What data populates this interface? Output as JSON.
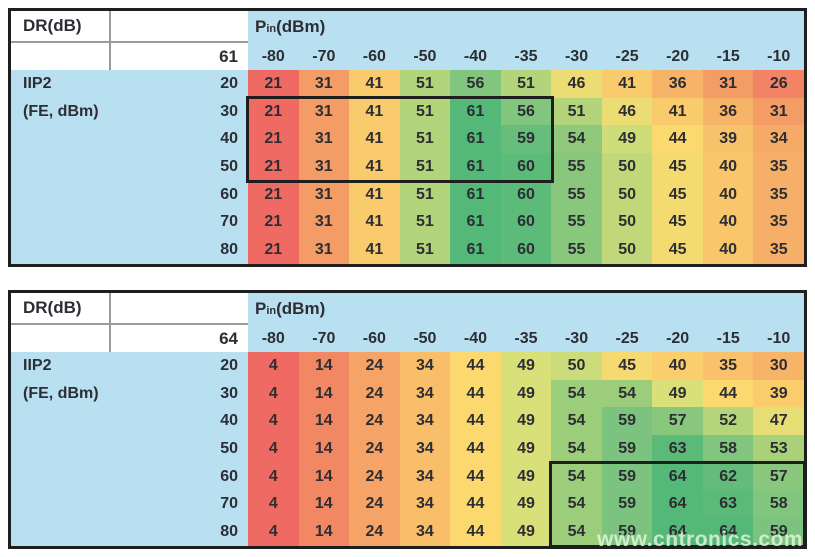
{
  "watermark": "www.cntronics.com",
  "colors": {
    "header_blue": "#b9e0f1",
    "outer_border": "#1e1e1e",
    "grid_line": "#9a9a9a",
    "text": "#2d2e33",
    "scale": [
      {
        "t": 0,
        "c": "#ef6a62"
      },
      {
        "t": 0.25,
        "c": "#f5a366"
      },
      {
        "t": 0.5,
        "c": "#fbd96e"
      },
      {
        "t": 0.625,
        "c": "#d9e07a"
      },
      {
        "t": 0.75,
        "c": "#9ccd7a"
      },
      {
        "t": 0.875,
        "c": "#7cc37f"
      },
      {
        "t": 1,
        "c": "#54b878"
      }
    ]
  },
  "chart_data": [
    {
      "type": "heatmap",
      "corner_label": "DR(dB)",
      "pin_label": {
        "main": "P",
        "sub": "in",
        "rest": " (dBm)"
      },
      "ref_value": "61",
      "row_axis_label_lines": [
        "IIP2",
        "(FE, dBm)"
      ],
      "columns": [
        "-80",
        "-70",
        "-60",
        "-50",
        "-40",
        "-35",
        "-30",
        "-25",
        "-20",
        "-15",
        "-10"
      ],
      "rows": [
        "20",
        "30",
        "40",
        "50",
        "60",
        "70",
        "80"
      ],
      "values": [
        [
          21,
          31,
          41,
          51,
          56,
          51,
          46,
          41,
          36,
          31,
          26
        ],
        [
          21,
          31,
          41,
          51,
          61,
          56,
          51,
          46,
          41,
          36,
          31
        ],
        [
          21,
          31,
          41,
          51,
          61,
          59,
          54,
          49,
          44,
          39,
          34
        ],
        [
          21,
          31,
          41,
          51,
          61,
          60,
          55,
          50,
          45,
          40,
          35
        ],
        [
          21,
          31,
          41,
          51,
          61,
          60,
          55,
          50,
          45,
          40,
          35
        ],
        [
          21,
          31,
          41,
          51,
          61,
          60,
          55,
          50,
          45,
          40,
          35
        ],
        [
          21,
          31,
          41,
          51,
          61,
          60,
          55,
          50,
          45,
          40,
          35
        ]
      ],
      "colormap": {
        "min": 21,
        "mid": 44,
        "max": 61
      },
      "highlight": {
        "row_start": 1,
        "row_end": 3,
        "col_start": 0,
        "col_end": 5
      }
    },
    {
      "type": "heatmap",
      "corner_label": "DR(dB)",
      "pin_label": {
        "main": "P",
        "sub": "in",
        "rest": " (dBm)"
      },
      "ref_value": "64",
      "row_axis_label_lines": [
        "IIP2",
        "(FE, dBm)"
      ],
      "columns": [
        "-80",
        "-70",
        "-60",
        "-50",
        "-40",
        "-35",
        "-30",
        "-25",
        "-20",
        "-15",
        "-10"
      ],
      "rows": [
        "20",
        "30",
        "40",
        "50",
        "60",
        "70",
        "80"
      ],
      "values": [
        [
          4,
          14,
          24,
          34,
          44,
          49,
          50,
          45,
          40,
          35,
          30
        ],
        [
          4,
          14,
          24,
          34,
          44,
          49,
          54,
          54,
          49,
          44,
          39
        ],
        [
          4,
          14,
          24,
          34,
          44,
          49,
          54,
          59,
          57,
          52,
          47
        ],
        [
          4,
          14,
          24,
          34,
          44,
          49,
          54,
          59,
          63,
          58,
          53
        ],
        [
          4,
          14,
          24,
          34,
          44,
          49,
          54,
          59,
          64,
          62,
          57
        ],
        [
          4,
          14,
          24,
          34,
          44,
          49,
          54,
          59,
          64,
          63,
          58
        ],
        [
          4,
          14,
          24,
          34,
          44,
          49,
          54,
          59,
          64,
          64,
          59
        ]
      ],
      "colormap": {
        "min": 4,
        "mid": 44,
        "max": 64
      },
      "highlight": {
        "row_start": 4,
        "row_end": 6,
        "col_start": 6,
        "col_end": 10
      }
    }
  ]
}
